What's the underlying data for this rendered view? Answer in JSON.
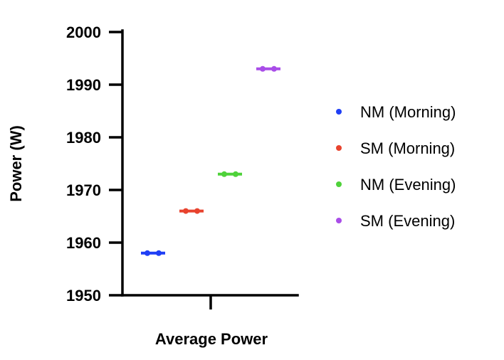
{
  "chart_data": {
    "type": "scatter",
    "categories": [
      "Average Power"
    ],
    "xlabel": "Average Power",
    "ylabel": "Power (W)",
    "ylim": [
      1950,
      2000
    ],
    "yticks": [
      1950,
      1960,
      1970,
      1980,
      1990,
      2000
    ],
    "grid": false,
    "legend_position": "right",
    "series": [
      {
        "name": "NM (Morning)",
        "values": [
          1958
        ],
        "color": "#1f3ff5"
      },
      {
        "name": "SM (Morning)",
        "values": [
          1966
        ],
        "color": "#e8432e"
      },
      {
        "name": "NM (Evening)",
        "values": [
          1973
        ],
        "color": "#4fd23a"
      },
      {
        "name": "SM (Evening)",
        "values": [
          1993
        ],
        "color": "#a94de8"
      }
    ]
  }
}
